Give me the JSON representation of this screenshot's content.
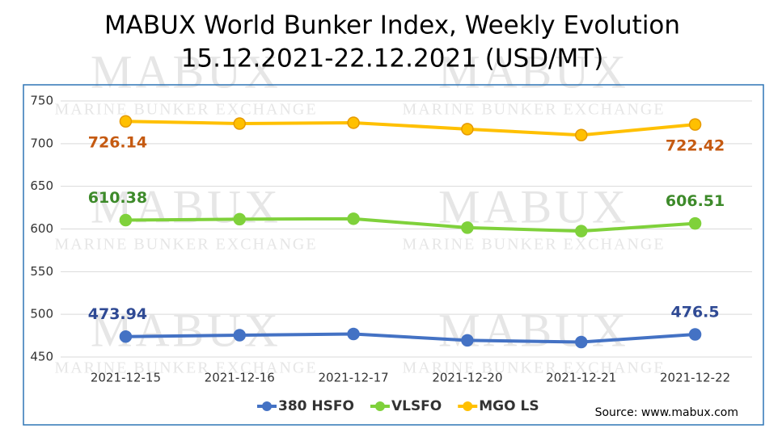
{
  "chart_data": {
    "type": "line",
    "title": "MABUX World Bunker Index, Weekly Evolution",
    "subtitle": "15.12.2021-22.12.2021 (USD/MT)",
    "categories": [
      "2021-12-15",
      "2021-12-16",
      "2021-12-17",
      "2021-12-20",
      "2021-12-21",
      "2021-12-22"
    ],
    "series": [
      {
        "name": "380 HSFO",
        "color": "#4472c4",
        "label_color": "#2f4a94",
        "values": [
          473.94,
          475.5,
          477,
          469.5,
          467.5,
          476.5
        ]
      },
      {
        "name": "VLSFO",
        "color": "#7fd13b",
        "label_color": "#3d8a2a",
        "values": [
          610.38,
          611.5,
          612,
          601.5,
          597.5,
          606.51
        ]
      },
      {
        "name": "MGO LS",
        "color": "#ffc000",
        "label_color": "#c55a11",
        "values": [
          726.14,
          723.5,
          724.5,
          717,
          710,
          722.42
        ]
      }
    ],
    "ylim": [
      450,
      750
    ],
    "yticks": [
      450,
      500,
      550,
      600,
      650,
      700,
      750
    ],
    "grid": true,
    "legend": "bottom",
    "source": "Source: www.mabux.com",
    "watermark": "MABUX",
    "watermark_subtitle": "MARINE BUNKER EXCHANGE"
  }
}
